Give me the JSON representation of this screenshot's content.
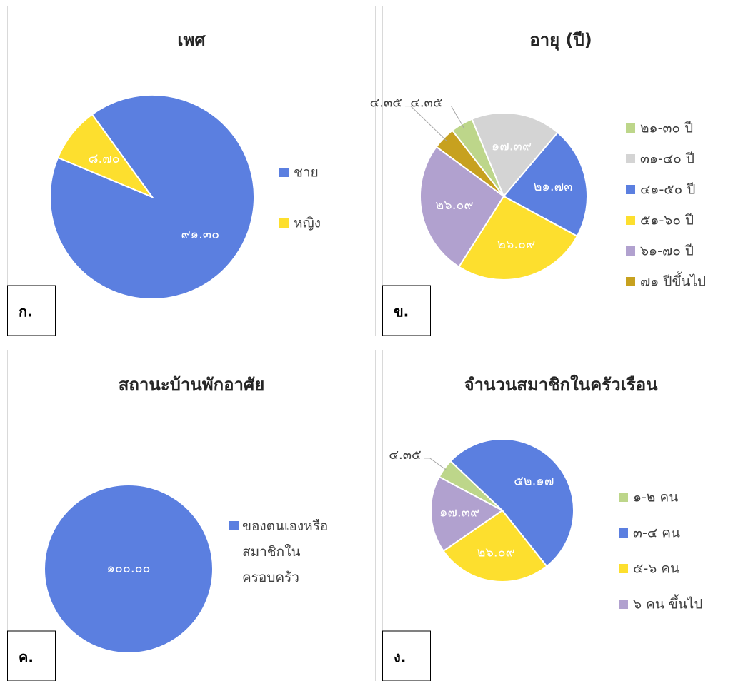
{
  "chart_data": [
    {
      "type": "pie",
      "title": "เพศ",
      "panel_label": "ก.",
      "categories": [
        "ชาย",
        "หญิง"
      ],
      "values": [
        91.3,
        8.7
      ],
      "value_labels": [
        "๙๑.๓๐",
        "๘.๗๐"
      ],
      "colors": [
        "#5b7fe0",
        "#fddf2e"
      ]
    },
    {
      "type": "pie",
      "title": "อายุ (ปี)",
      "panel_label": "ข.",
      "categories": [
        "๒๑-๓๐ ปี",
        "๓๑-๔๐ ปี",
        "๔๑-๕๐ ปี",
        "๕๑-๖๐ ปี",
        "๖๑-๗๐ ปี",
        "๗๑ ปีขึ้นไป"
      ],
      "values": [
        4.35,
        17.39,
        21.73,
        26.09,
        26.09,
        4.35
      ],
      "value_labels": [
        "๔.๓๕",
        "๑๗.๓๙",
        "๒๑.๗๓",
        "๒๖.๐๙",
        "๒๖.๐๙",
        "๔.๓๕"
      ],
      "colors": [
        "#bdd68a",
        "#d4d4d4",
        "#5b7fe0",
        "#fddf2e",
        "#b1a1cf",
        "#c7a11f"
      ]
    },
    {
      "type": "pie",
      "title": "สถานะบ้านพักอาศัย",
      "panel_label": "ค.",
      "categories": [
        "ของตนเองหรือสมาชิกในครอบครัว"
      ],
      "values": [
        100.0
      ],
      "value_labels": [
        "๑๐๐.๐๐"
      ],
      "colors": [
        "#5b7fe0"
      ]
    },
    {
      "type": "pie",
      "title": "จำนวนสมาชิกในครัวเรือน",
      "panel_label": "ง.",
      "categories": [
        "๑-๒ คน",
        "๓-๔ คน",
        "๕-๖ คน",
        "๖ คน ขึ้นไป"
      ],
      "values": [
        4.35,
        52.17,
        26.09,
        17.39
      ],
      "value_labels": [
        "๔.๓๕",
        "๕๒.๑๗",
        "๒๖.๐๙",
        "๑๗.๓๙"
      ],
      "colors": [
        "#bdd68a",
        "#5b7fe0",
        "#fddf2e",
        "#b1a1cf"
      ]
    }
  ]
}
